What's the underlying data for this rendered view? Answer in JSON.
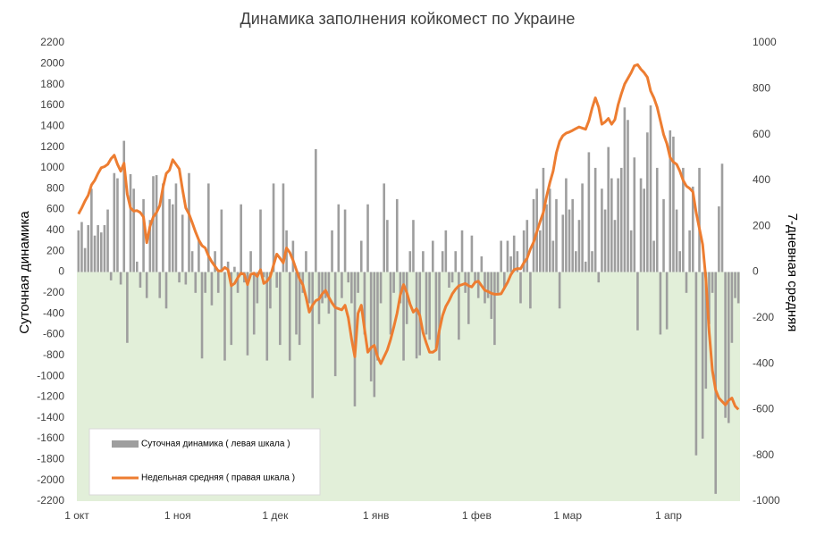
{
  "chart_data": {
    "type": "bar",
    "title": "Динамика заполнения койкомест по Украине",
    "y_label": "Суточная динамика",
    "y2_label": "7-дневная средняя",
    "categories": [
      "1 окт",
      null,
      null,
      null,
      null,
      null,
      null,
      null,
      null,
      null,
      null,
      null,
      null,
      null,
      null,
      null,
      null,
      null,
      null,
      null,
      null,
      null,
      null,
      null,
      null,
      null,
      null,
      null,
      null,
      null,
      null,
      "1 ноя",
      null,
      null,
      null,
      null,
      null,
      null,
      null,
      null,
      null,
      null,
      null,
      null,
      null,
      null,
      null,
      null,
      null,
      null,
      null,
      null,
      null,
      null,
      null,
      null,
      null,
      null,
      null,
      null,
      null,
      "1 дек",
      null,
      null,
      null,
      null,
      null,
      null,
      null,
      null,
      null,
      null,
      null,
      null,
      null,
      null,
      null,
      null,
      null,
      null,
      null,
      null,
      null,
      null,
      null,
      null,
      null,
      null,
      null,
      null,
      null,
      null,
      "1 янв",
      null,
      null,
      null,
      null,
      null,
      null,
      null,
      null,
      null,
      null,
      null,
      null,
      null,
      null,
      null,
      null,
      null,
      null,
      null,
      null,
      null,
      null,
      null,
      null,
      null,
      null,
      null,
      null,
      null,
      null,
      "1 фев",
      null,
      null,
      null,
      null,
      null,
      null,
      null,
      null,
      null,
      null,
      null,
      null,
      null,
      null,
      null,
      null,
      null,
      null,
      null,
      null,
      null,
      null,
      null,
      null,
      null,
      null,
      null,
      "1 мар",
      null,
      null,
      null,
      null,
      null,
      null,
      null,
      null,
      null,
      null,
      null,
      null,
      null,
      null,
      null,
      null,
      null,
      null,
      null,
      null,
      null,
      null,
      null,
      null,
      null,
      null,
      null,
      null,
      null,
      null,
      "1 апр",
      null,
      null,
      null,
      null,
      null,
      null,
      null,
      null,
      null,
      null,
      null,
      null,
      null,
      null,
      null,
      null,
      null,
      null,
      null,
      null,
      null
    ],
    "series": [
      {
        "name": "Суточная динамика ( левая шкала )",
        "type": "bar",
        "color": "#9e9e9e",
        "values": [
          400,
          480,
          230,
          450,
          800,
          350,
          450,
          380,
          450,
          600,
          -80,
          950,
          900,
          -120,
          1260,
          -680,
          940,
          800,
          100,
          -150,
          700,
          -250,
          500,
          920,
          930,
          -250,
          850,
          -350,
          700,
          650,
          850,
          -100,
          550,
          -120,
          950,
          200,
          -200,
          300,
          -830,
          -200,
          850,
          -320,
          200,
          -200,
          600,
          -850,
          100,
          -700,
          50,
          -200,
          650,
          -100,
          -800,
          200,
          -600,
          -300,
          600,
          -50,
          -850,
          -350,
          850,
          -150,
          -700,
          850,
          400,
          -850,
          300,
          -600,
          -700,
          -200,
          200,
          -300,
          -1210,
          1180,
          -500,
          -300,
          -250,
          -400,
          400,
          -1000,
          650,
          -250,
          600,
          -100,
          -300,
          -1290,
          -200,
          300,
          -600,
          650,
          -1050,
          -1200,
          -850,
          -300,
          850,
          500,
          -600,
          -200,
          700,
          -300,
          -850,
          -500,
          200,
          500,
          -830,
          -800,
          200,
          -600,
          -650,
          300,
          -750,
          -850,
          200,
          400,
          -150,
          -100,
          200,
          -650,
          400,
          -200,
          -500,
          350,
          -100,
          -250,
          150,
          -300,
          -250,
          -450,
          -700,
          -200,
          300,
          -150,
          300,
          150,
          350,
          200,
          -300,
          400,
          500,
          -350,
          700,
          800,
          400,
          1000,
          650,
          800,
          300,
          700,
          -350,
          550,
          900,
          600,
          700,
          200,
          500,
          850,
          100,
          1150,
          200,
          1000,
          -100,
          800,
          600,
          1200,
          900,
          500,
          900,
          1000,
          1580,
          1460,
          400,
          1100,
          -560,
          900,
          800,
          1340,
          1600,
          300,
          1000,
          -600,
          700,
          -550,
          1360,
          1300,
          600,
          200,
          1000,
          -200,
          400,
          820,
          -1760,
          1000,
          -1600,
          -1120,
          -500,
          -200,
          -2130,
          630,
          1040,
          -1400,
          -1450,
          -680,
          -250,
          -300
        ]
      },
      {
        "name": "Недельная средняя ( правая шкала )",
        "type": "line",
        "axis": "y2",
        "color": "#ed7d31",
        "values": [
          253,
          280,
          310,
          335,
          380,
          400,
          430,
          455,
          460,
          470,
          494,
          510,
          470,
          440,
          475,
          340,
          280,
          266,
          268,
          260,
          240,
          128,
          200,
          240,
          260,
          290,
          370,
          430,
          445,
          490,
          470,
          450,
          360,
          280,
          253,
          215,
          175,
          140,
          115,
          105,
          70,
          45,
          25,
          5,
          5,
          20,
          10,
          -60,
          -50,
          -25,
          -5,
          -10,
          -55,
          -10,
          -5,
          -19,
          10,
          -50,
          -40,
          -20,
          30,
          78,
          60,
          40,
          105,
          85,
          51,
          10,
          -30,
          -55,
          -110,
          -175,
          -145,
          -125,
          -118,
          -95,
          -80,
          -110,
          -135,
          -155,
          -160,
          -165,
          -145,
          -200,
          -292,
          -370,
          -180,
          -145,
          -250,
          -350,
          -330,
          -320,
          -370,
          -400,
          -370,
          -340,
          -295,
          -240,
          -180,
          -100,
          -55,
          -90,
          -140,
          -175,
          -160,
          -190,
          -265,
          -310,
          -350,
          -350,
          -340,
          -255,
          -190,
          -150,
          -125,
          -95,
          -75,
          -60,
          -55,
          -50,
          -60,
          -65,
          -45,
          -40,
          -60,
          -80,
          -85,
          -93,
          -97,
          -97,
          -95,
          -70,
          -45,
          -12,
          10,
          15,
          14,
          40,
          60,
          100,
          130,
          175,
          220,
          260,
          330,
          390,
          440,
          520,
          570,
          595,
          606,
          611,
          618,
          626,
          633,
          628,
          623,
          660,
          715,
          760,
          720,
          645,
          655,
          670,
          645,
          665,
          730,
          778,
          820,
          845,
          870,
          900,
          905,
          885,
          870,
          850,
          790,
          760,
          720,
          660,
          600,
          560,
          500,
          480,
          470,
          440,
          400,
          375,
          365,
          350,
          260,
          190,
          120,
          -30,
          -260,
          -430,
          -515,
          -550,
          -565,
          -580,
          -560,
          -550,
          -585,
          -600
        ]
      }
    ],
    "ylim": [
      -2200,
      2200
    ],
    "yticks": [
      -2200,
      -2000,
      -1800,
      -1600,
      -1400,
      -1200,
      -1000,
      -800,
      -600,
      -400,
      -200,
      0,
      200,
      400,
      600,
      800,
      1000,
      1200,
      1400,
      1600,
      1800,
      2000,
      2200
    ],
    "y2lim": [
      -1000,
      1000
    ],
    "y2ticks": [
      -1000,
      -800,
      -600,
      -400,
      -200,
      0,
      200,
      400,
      600,
      800,
      1000
    ],
    "negative_fill": "#e2efd9",
    "legend": "lower left"
  }
}
